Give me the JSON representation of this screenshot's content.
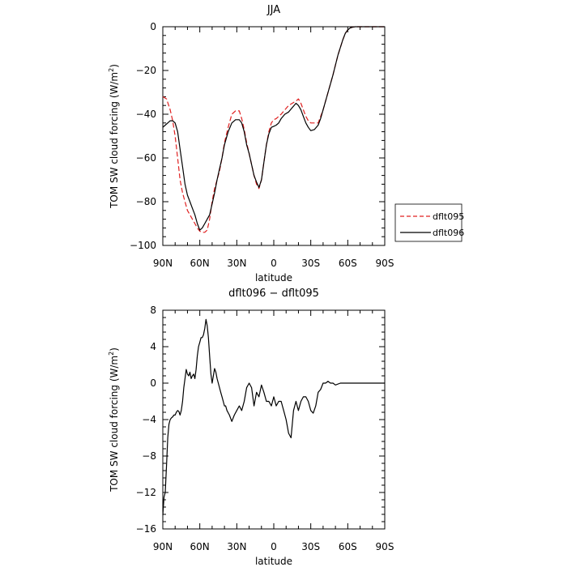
{
  "chart_data": [
    {
      "type": "line",
      "title": "JJA",
      "xlabel": "latitude",
      "ylabel": "TOM SW cloud forcing (W/m²)",
      "xlim": [
        90,
        -90
      ],
      "ylim": [
        -100,
        0
      ],
      "xticks": [
        90,
        60,
        30,
        0,
        -30,
        -60,
        -90
      ],
      "xtick_labels": [
        "90N",
        "60N",
        "30N",
        "0",
        "30S",
        "60S",
        "90S"
      ],
      "yticks": [
        0,
        -20,
        -40,
        -60,
        -80,
        -100
      ],
      "ytick_labels": [
        "0",
        "−20",
        "−40",
        "−60",
        "−80",
        "−100"
      ],
      "grid": false,
      "legend_position": "right-outside-bottom",
      "series": [
        {
          "name": "dflt095",
          "color": "#e02020",
          "dash": true,
          "x": [
            90,
            87,
            84,
            82,
            80,
            78,
            76,
            74,
            72,
            70,
            68,
            66,
            64,
            62,
            60,
            58,
            56,
            54,
            52,
            50,
            48,
            46,
            44,
            42,
            40,
            37,
            34,
            31,
            28,
            26,
            24,
            22,
            20,
            18,
            16,
            14,
            12,
            10,
            8,
            6,
            4,
            2,
            0,
            -2,
            -4,
            -6,
            -9,
            -12,
            -15,
            -18,
            -20,
            -22,
            -24,
            -26,
            -28,
            -30,
            -33,
            -36,
            -40,
            -44,
            -48,
            -52,
            -56,
            -58,
            -60,
            -62,
            -64,
            -66,
            -70,
            -80,
            -90
          ],
          "y": [
            -32,
            -33,
            -38,
            -43,
            -50,
            -60,
            -70,
            -76,
            -80,
            -84,
            -86,
            -88,
            -90,
            -92,
            -93.5,
            -94,
            -94,
            -93,
            -88,
            -80,
            -74,
            -70,
            -66,
            -60,
            -53,
            -46,
            -40,
            -38.5,
            -38.5,
            -42,
            -47,
            -53,
            -58,
            -63,
            -68,
            -72,
            -74,
            -70,
            -62,
            -54,
            -48,
            -44,
            -42.5,
            -42,
            -41,
            -40,
            -38,
            -36,
            -35,
            -34,
            -33,
            -35,
            -38,
            -41,
            -43,
            -44,
            -44,
            -44,
            -38,
            -30,
            -22,
            -13,
            -6,
            -3,
            -1.5,
            -0.5,
            -0.2,
            0,
            0,
            0,
            0
          ]
        },
        {
          "name": "dflt096",
          "color": "#000000",
          "dash": false,
          "x": [
            90,
            88,
            86,
            84,
            82,
            80,
            78,
            76,
            74,
            72,
            70,
            68,
            66,
            64,
            62,
            60,
            58,
            56,
            54,
            52,
            50,
            48,
            46,
            44,
            42,
            40,
            37,
            34,
            31,
            28,
            26,
            24,
            22,
            20,
            18,
            16,
            14,
            12,
            10,
            8,
            6,
            4,
            2,
            0,
            -2,
            -4,
            -6,
            -9,
            -12,
            -15,
            -18,
            -20,
            -22,
            -24,
            -26,
            -28,
            -30,
            -33,
            -36,
            -38,
            -40,
            -44,
            -48,
            -52,
            -56,
            -58,
            -60,
            -62,
            -64,
            -66,
            -70,
            -80,
            -90
          ],
          "y": [
            -46,
            -45,
            -44,
            -43,
            -43,
            -44,
            -48,
            -56,
            -64,
            -72,
            -77,
            -80,
            -83,
            -86,
            -90,
            -93,
            -92,
            -90,
            -88,
            -86,
            -81,
            -76,
            -70,
            -65,
            -60,
            -54,
            -48,
            -44,
            -42.5,
            -42.5,
            -44,
            -48,
            -54,
            -58,
            -63,
            -68,
            -71,
            -73.5,
            -70,
            -62,
            -54,
            -49,
            -46,
            -45.5,
            -45,
            -44,
            -42,
            -40,
            -39,
            -37,
            -35,
            -36,
            -38,
            -41,
            -44,
            -46,
            -47.5,
            -47,
            -45,
            -42,
            -38,
            -30,
            -22,
            -13,
            -6,
            -3,
            -1.5,
            -0.5,
            -0.2,
            0,
            0,
            0,
            0
          ]
        }
      ]
    },
    {
      "type": "line",
      "title": "dflt096 − dflt095",
      "xlabel": "latitude",
      "ylabel": "TOM SW cloud forcing (W/m²)",
      "xlim": [
        90,
        -90
      ],
      "ylim": [
        -16,
        8
      ],
      "xticks": [
        90,
        60,
        30,
        0,
        -30,
        -60,
        -90
      ],
      "xtick_labels": [
        "90N",
        "60N",
        "30N",
        "0",
        "30S",
        "60S",
        "90S"
      ],
      "yticks": [
        8,
        4,
        0,
        -4,
        -8,
        -12,
        -16
      ],
      "ytick_labels": [
        "8",
        "4",
        "0",
        "−4",
        "−8",
        "−12",
        "−16"
      ],
      "grid": false,
      "series": [
        {
          "color": "#000000",
          "dash": false,
          "x": [
            90,
            89,
            88,
            87,
            86,
            85,
            84,
            83,
            82,
            81,
            80,
            79,
            78,
            77,
            76,
            75,
            74,
            73,
            72,
            71,
            70,
            69,
            68,
            67,
            66,
            65,
            64,
            63,
            62,
            61,
            60,
            59,
            58,
            57,
            56,
            55,
            54,
            53,
            52,
            51,
            50,
            49,
            48,
            47,
            46,
            45,
            44,
            43,
            42,
            41,
            40,
            39,
            38,
            36,
            34,
            32,
            30,
            28,
            26,
            24,
            22,
            20,
            18,
            16,
            14,
            12,
            10,
            8,
            6,
            4,
            2,
            0,
            -2,
            -4,
            -6,
            -8,
            -10,
            -12,
            -14,
            -16,
            -18,
            -20,
            -22,
            -24,
            -26,
            -28,
            -30,
            -32,
            -34,
            -36,
            -38,
            -40,
            -42,
            -44,
            -46,
            -48,
            -50,
            -54,
            -58,
            -62,
            -70,
            -80,
            -90
          ],
          "y": [
            -14.5,
            -12.5,
            -12,
            -9,
            -6,
            -4.5,
            -4,
            -3.8,
            -3.7,
            -3.5,
            -3.5,
            -3.2,
            -3.0,
            -3.1,
            -3.5,
            -3,
            -2,
            -0.5,
            0.5,
            1.5,
            1,
            0.8,
            1.2,
            0.5,
            0.8,
            1.0,
            0.5,
            1.5,
            3.0,
            4.0,
            4.5,
            5.0,
            5.0,
            5.3,
            6.0,
            7.0,
            6.3,
            5.0,
            3.0,
            1.0,
            0.0,
            0.8,
            1.6,
            1.2,
            0.5,
            0,
            -0.5,
            -1.0,
            -1.5,
            -2.0,
            -2.5,
            -2.5,
            -3.0,
            -3.5,
            -4.2,
            -3.5,
            -3.0,
            -2.5,
            -3.0,
            -2.0,
            -0.5,
            0.0,
            -0.5,
            -2.5,
            -1.0,
            -1.5,
            -0.2,
            -1.0,
            -2.0,
            -2.0,
            -2.5,
            -1.5,
            -2.5,
            -2.0,
            -2.0,
            -3.0,
            -4.0,
            -5.5,
            -6.0,
            -3.0,
            -2.0,
            -3.0,
            -2.0,
            -1.5,
            -1.5,
            -2.0,
            -3.0,
            -3.3,
            -2.5,
            -1.0,
            -0.7,
            0.0,
            0.0,
            0.2,
            0.0,
            0.0,
            -0.2,
            0.0,
            0.0,
            0.0,
            0.0,
            0.0,
            0.0
          ]
        }
      ]
    }
  ]
}
